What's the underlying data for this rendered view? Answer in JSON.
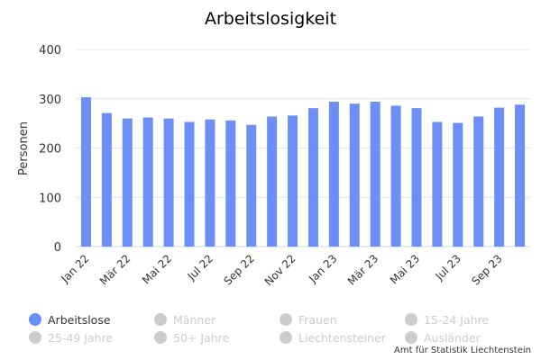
{
  "chart_data": {
    "type": "bar",
    "title": "Arbeitslosigkeit",
    "ylabel": "Personen",
    "xlabel": "",
    "ylim": [
      0,
      400
    ],
    "yticks": [
      0,
      100,
      200,
      300,
      400
    ],
    "grid": true,
    "legend_position": "bottom",
    "categories": [
      "Jan 22",
      "Feb 22",
      "Mär 22",
      "Apr 22",
      "Mai 22",
      "Jun 22",
      "Jul 22",
      "Aug 22",
      "Sep 22",
      "Okt 22",
      "Nov 22",
      "Dez 22",
      "Jan 23",
      "Feb 23",
      "Mär 23",
      "Apr 23",
      "Mai 23",
      "Jun 23",
      "Jul 23",
      "Aug 23",
      "Sep 23",
      "Okt 23"
    ],
    "tick_labels": [
      "Jan 22",
      "Mär 22",
      "Mai 22",
      "Jul 22",
      "Sep 22",
      "Nov 22",
      "Jan 23",
      "Mär 23",
      "Mai 23",
      "Jul 23",
      "Sep 23"
    ],
    "series": [
      {
        "name": "Arbeitslose",
        "color": "#6b8ff7",
        "visible": true,
        "values": [
          303,
          271,
          260,
          262,
          260,
          253,
          258,
          256,
          247,
          264,
          266,
          281,
          294,
          290,
          294,
          286,
          281,
          253,
          251,
          264,
          282,
          288
        ]
      },
      {
        "name": "Männer",
        "visible": false
      },
      {
        "name": "Frauen",
        "visible": false
      },
      {
        "name": "15-24 Jahre",
        "visible": false
      },
      {
        "name": "25-49 Jahre",
        "visible": false
      },
      {
        "name": "50+ Jahre",
        "visible": false
      },
      {
        "name": "Liechtensteiner",
        "visible": false
      },
      {
        "name": "Ausländer",
        "visible": false
      }
    ],
    "legend_inactive_color": "#cccccc"
  },
  "credits": "Amt für Statistik Liechtenstein"
}
